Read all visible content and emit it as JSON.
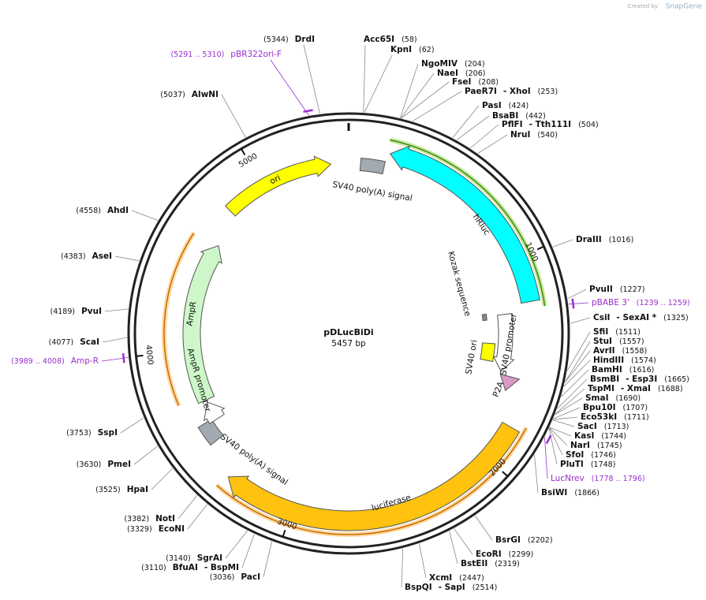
{
  "map": {
    "name": "pDLucBiDi",
    "size": "5457 bp",
    "watermark": [
      "Created by",
      "SnapGene"
    ],
    "ticks": [
      "1000",
      "2000",
      "3000",
      "4000",
      "5000"
    ],
    "features": [
      "ori",
      "SV40 poly(A) signal",
      "hRluc",
      "Kozak sequence",
      "SV40 promoter",
      "SV40 ori",
      "P2A",
      "luciferase",
      "SV40 poly(A) signal",
      "AmpR",
      "AmpR promoter"
    ],
    "primers": [
      {
        "name": "pBR322ori-F",
        "range": "(5291 .. 5310)"
      },
      {
        "name": "pBABE 3'",
        "range": "(1239 .. 1259)"
      },
      {
        "name": "Amp-R",
        "range": "(3989 .. 4008)"
      },
      {
        "name": "LucNrev",
        "range": "(1778 .. 1796)"
      }
    ],
    "sites": [
      {
        "names": [
          "Acc65I"
        ],
        "position": "(58)"
      },
      {
        "names": [
          "KpnI"
        ],
        "position": "(62)"
      },
      {
        "names": [
          "NgoMIV"
        ],
        "position": "(204)"
      },
      {
        "names": [
          "NaeI"
        ],
        "position": "(206)"
      },
      {
        "names": [
          "FseI"
        ],
        "position": "(208)"
      },
      {
        "names": [
          "PaeR7I",
          "- XhoI"
        ],
        "position": "(253)"
      },
      {
        "names": [
          "PasI"
        ],
        "position": "(424)"
      },
      {
        "names": [
          "BsaBI"
        ],
        "position": "(442)"
      },
      {
        "names": [
          "PflFI",
          "- Tth111I"
        ],
        "position": "(504)"
      },
      {
        "names": [
          "NruI"
        ],
        "position": "(540)"
      },
      {
        "names": [
          "DraIII"
        ],
        "position": "(1016)"
      },
      {
        "names": [
          "PvuII"
        ],
        "position": "(1227)"
      },
      {
        "names": [
          "CsiI",
          "- SexAI *"
        ],
        "position": "(1325)"
      },
      {
        "names": [
          "SfiI"
        ],
        "position": "(1511)"
      },
      {
        "names": [
          "StuI"
        ],
        "position": "(1557)"
      },
      {
        "names": [
          "AvrII"
        ],
        "position": "(1558)"
      },
      {
        "names": [
          "HindIII"
        ],
        "position": "(1574)"
      },
      {
        "names": [
          "BamHI"
        ],
        "position": "(1616)"
      },
      {
        "names": [
          "BsmBI",
          "- Esp3I"
        ],
        "position": "(1665)"
      },
      {
        "names": [
          "TspMI",
          "- XmaI"
        ],
        "position": "(1688)"
      },
      {
        "names": [
          "SmaI"
        ],
        "position": "(1690)"
      },
      {
        "names": [
          "Bpu10I"
        ],
        "position": "(1707)"
      },
      {
        "names": [
          "Eco53kI"
        ],
        "position": "(1711)"
      },
      {
        "names": [
          "SacI"
        ],
        "position": "(1713)"
      },
      {
        "names": [
          "KasI"
        ],
        "position": "(1744)"
      },
      {
        "names": [
          "NarI"
        ],
        "position": "(1745)"
      },
      {
        "names": [
          "SfoI"
        ],
        "position": "(1746)"
      },
      {
        "names": [
          "PluTI"
        ],
        "position": "(1748)"
      },
      {
        "names": [
          "BsiWI"
        ],
        "position": "(1866)"
      },
      {
        "names": [
          "BsrGI"
        ],
        "position": "(2202)"
      },
      {
        "names": [
          "EcoRI"
        ],
        "position": "(2299)"
      },
      {
        "names": [
          "BstEII"
        ],
        "position": "(2319)"
      },
      {
        "names": [
          "XcmI"
        ],
        "position": "(2447)"
      },
      {
        "names": [
          "BspQI",
          "- SapI"
        ],
        "position": "(2514)"
      },
      {
        "names": [
          "DrdI"
        ],
        "position": "(5344)"
      },
      {
        "names": [
          "AlwNI"
        ],
        "position": "(5037)"
      },
      {
        "names": [
          "AhdI"
        ],
        "position": "(4558)"
      },
      {
        "names": [
          "AseI"
        ],
        "position": "(4383)"
      },
      {
        "names": [
          "PvuI"
        ],
        "position": "(4189)"
      },
      {
        "names": [
          "ScaI"
        ],
        "position": "(4077)"
      },
      {
        "names": [
          "SspI"
        ],
        "position": "(3753)"
      },
      {
        "names": [
          "PmeI"
        ],
        "position": "(3630)"
      },
      {
        "names": [
          "HpaI"
        ],
        "position": "(3525)"
      },
      {
        "names": [
          "NotI"
        ],
        "position": "(3382)"
      },
      {
        "names": [
          "EcoNI"
        ],
        "position": "(3329)"
      },
      {
        "names": [
          "SgrAI"
        ],
        "position": "(3140)"
      },
      {
        "names": [
          "BfuAI",
          "- BspMI"
        ],
        "position": "(3110)"
      },
      {
        "names": [
          "PacI"
        ],
        "position": "(3036)"
      }
    ]
  }
}
